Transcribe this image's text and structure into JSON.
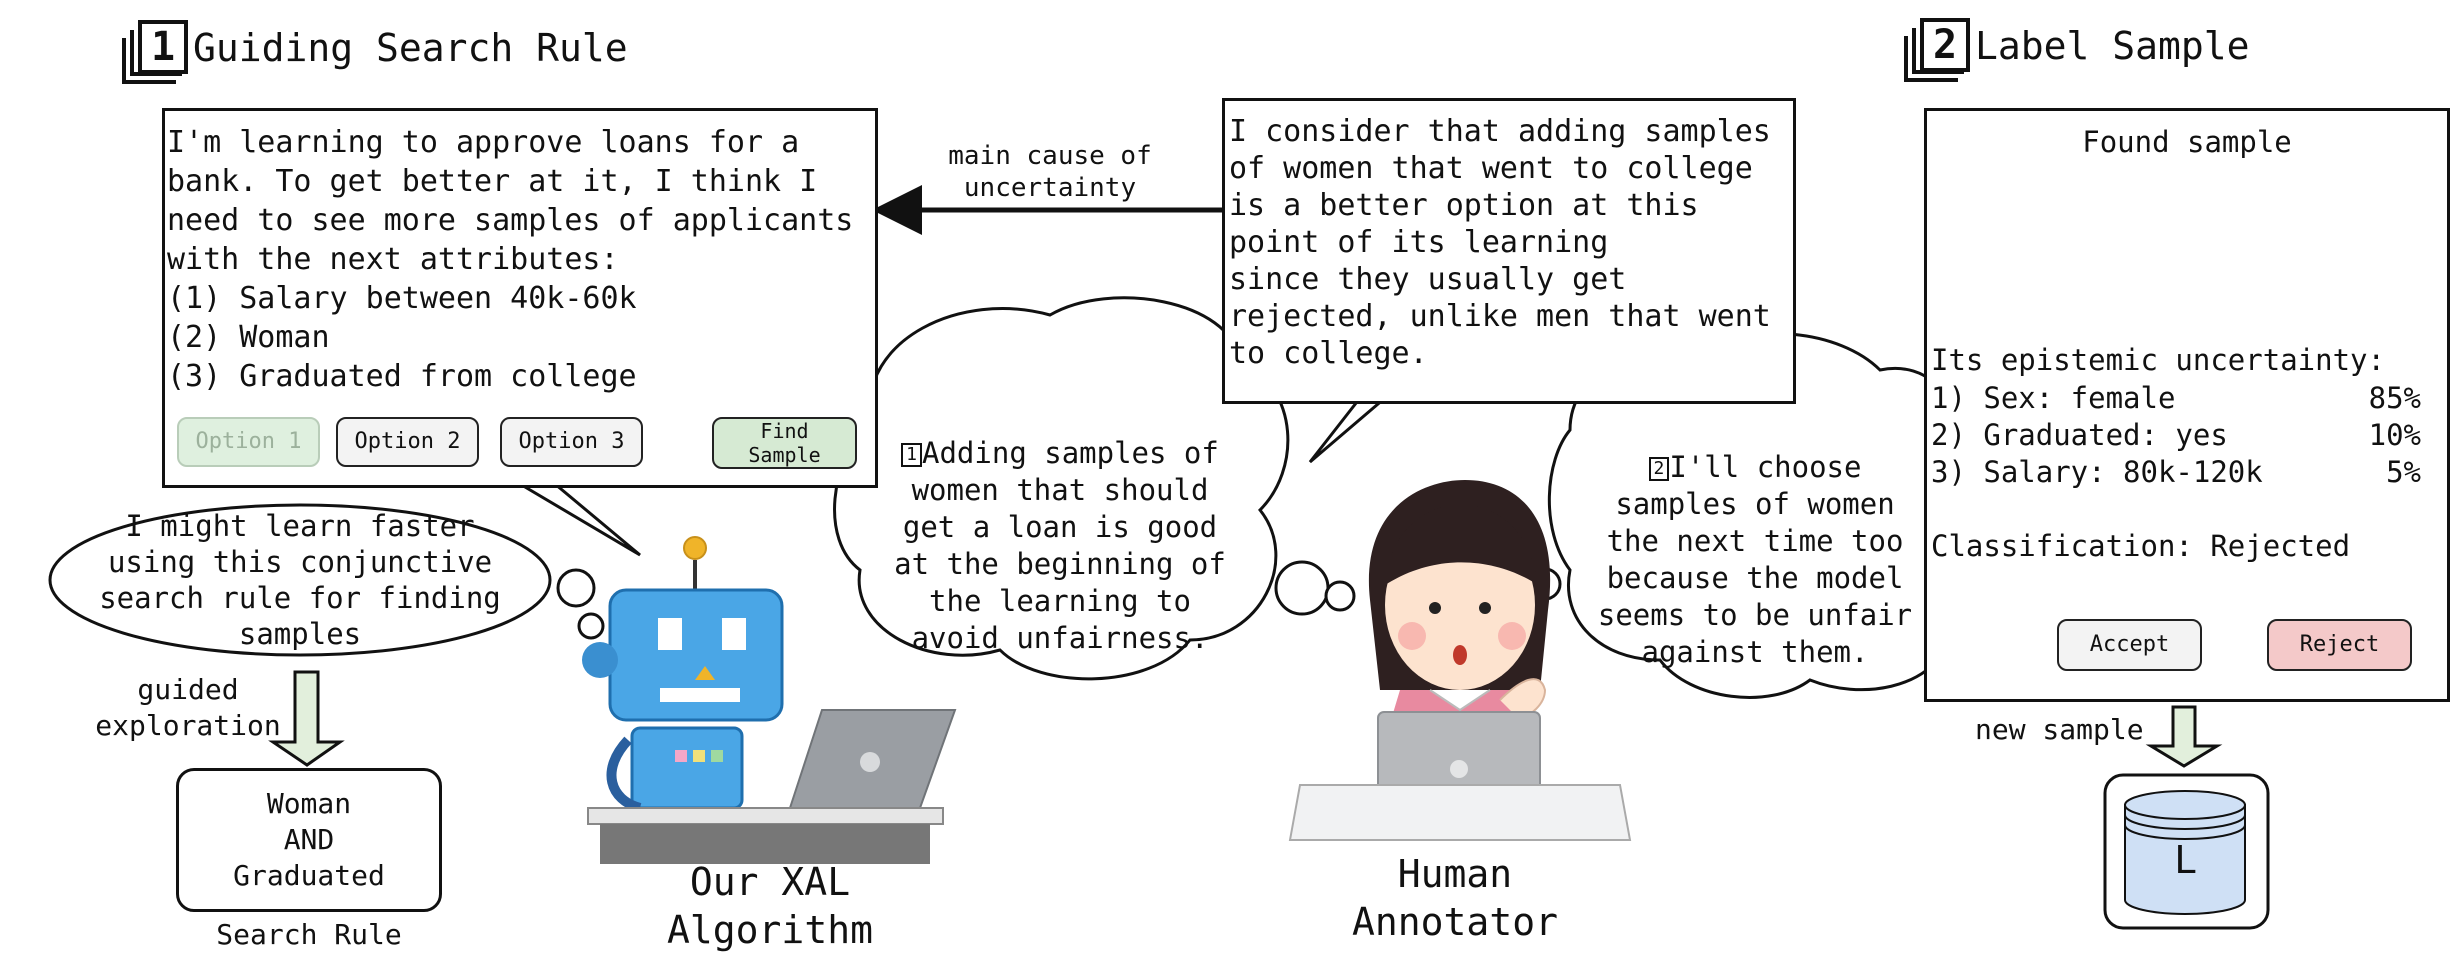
{
  "step1": {
    "number": "1",
    "title": "Guiding Search Rule"
  },
  "step2": {
    "number": "2",
    "title": "Label Sample"
  },
  "query_panel": {
    "text": "I'm learning to approve loans for a\nbank. To get better at it, I think I\nneed to see more samples of applicants\nwith the next attributes:\n(1) Salary between 40k-60k\n(2) Woman\n(3) Graduated from college",
    "buttons": [
      "Option 1",
      "Option 2",
      "Option 3",
      "Find\nSample"
    ],
    "colors": {
      "disabled_bg": "#dff0df",
      "find_bg": "#d6ead3"
    }
  },
  "explanation_panel": {
    "text": "I consider that adding samples\nof women that went to college\nis a better option at this\npoint of its learning\nsince they usually get\nrejected, unlike men that went\nto college."
  },
  "arrow_label": "main cause of\nuncertainty",
  "robot_thought": "I might learn faster\nusing this conjunctive\nsearch rule for finding\nsamples",
  "annotator_thought_1": {
    "badge": "1",
    "text": "Adding samples of\nwomen that should\nget a loan is good\nat the beginning of\nthe learning to\navoid unfairness."
  },
  "annotator_thought_2": {
    "badge": "2",
    "text": "I'll choose\nsamples of women\nthe next time too\nbecause the model\nseems to be unfair\nagainst them."
  },
  "guided_label": "guided\nexploration",
  "search_rule": {
    "text": "Woman\nAND\nGraduated",
    "caption": "Search Rule"
  },
  "algorithm_label": "Our XAL\nAlgorithm",
  "annotator_label": "Human\nAnnotator",
  "sample_panel": {
    "title": "Found sample",
    "uncertainty_title": "Its epistemic uncertainty:",
    "rows": [
      {
        "label": "1) Sex: female",
        "value": "85%"
      },
      {
        "label": "2) Graduated: yes",
        "value": "10%"
      },
      {
        "label": "3) Salary: 80k-120k",
        "value": "5%"
      }
    ],
    "classification": "Classification: Rejected",
    "accept": "Accept",
    "reject": "Reject",
    "colors": {
      "reject_bg": "#f4c9c9"
    }
  },
  "new_sample_label": "new sample",
  "dataset_label": "L",
  "colors": {
    "arrow_fill": "#e2efdc",
    "db_fill": "#cfe0f5",
    "robot_blue": "#4aa6e6"
  }
}
